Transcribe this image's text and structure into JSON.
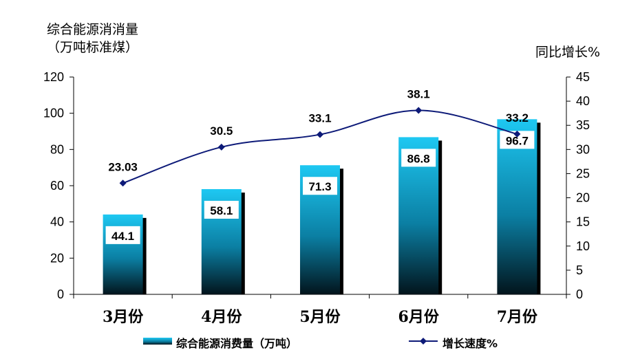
{
  "chart_data": {
    "type": "bar",
    "categories": [
      "3月份",
      "4月份",
      "5月份",
      "6月份",
      "7月份"
    ],
    "series": [
      {
        "name": "综合能源消费量（万吨）",
        "type": "bar",
        "axis": "left",
        "values": [
          44.1,
          58.1,
          71.3,
          86.8,
          96.7
        ]
      },
      {
        "name": "增长速度%",
        "type": "line",
        "axis": "right",
        "values": [
          23.03,
          30.5,
          33.1,
          38.1,
          33.2
        ]
      }
    ],
    "ylabel_left_line1": "综合能源消消量",
    "ylabel_left_line2": "（万吨标准煤）",
    "ylabel_right": "同比增长%",
    "ylim_left": [
      0,
      120
    ],
    "yticks_left": [
      0,
      20,
      40,
      60,
      80,
      100,
      120
    ],
    "ylim_right": [
      0,
      45
    ],
    "yticks_right": [
      0,
      5,
      10,
      15,
      20,
      25,
      30,
      35,
      40,
      45
    ],
    "grid": false,
    "legend_position": "bottom",
    "colors": {
      "bar_top": "#1ec8f2",
      "bar_bottom": "#02141c",
      "bar_shadow": "#000000",
      "line": "#0d1a78",
      "marker": "#0d1a78"
    }
  }
}
